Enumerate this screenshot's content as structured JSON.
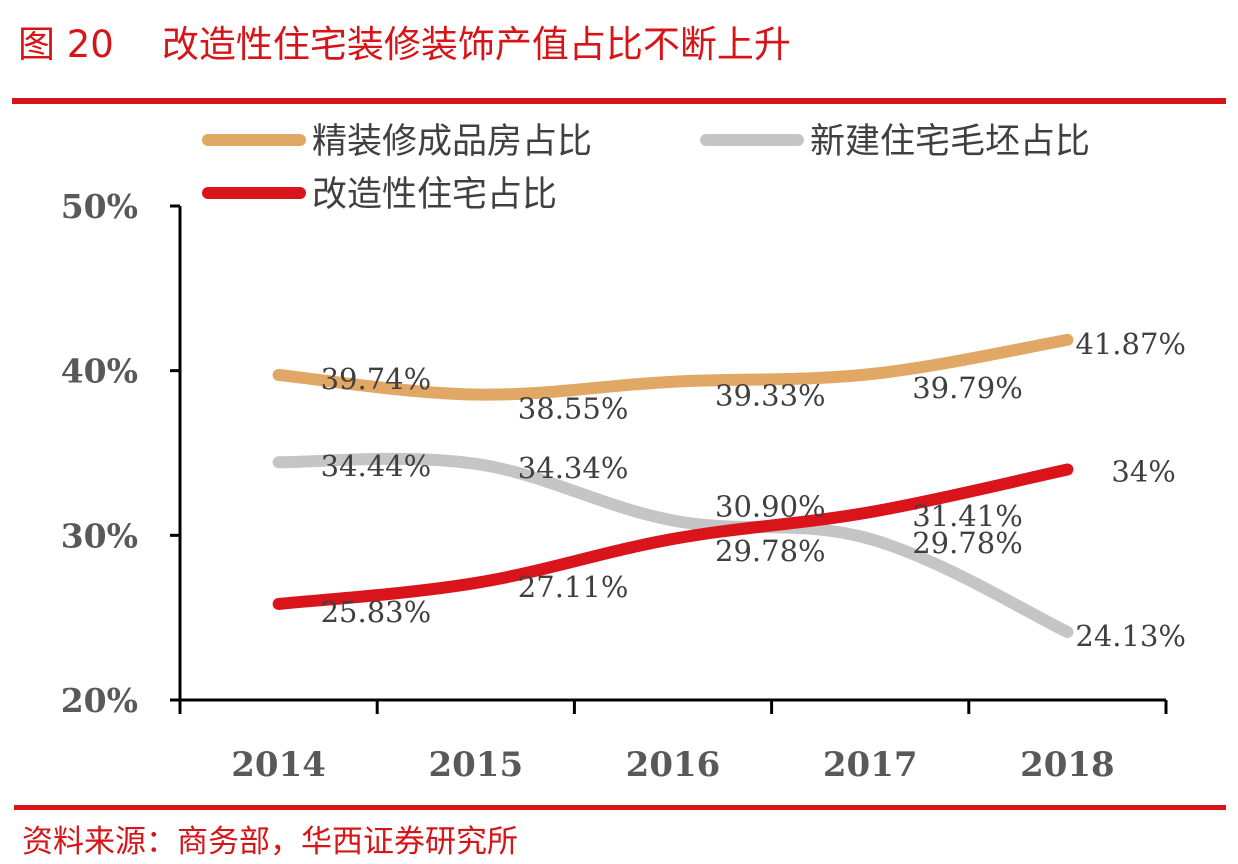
{
  "figure": {
    "number": "图 20",
    "title": "改造性住宅装修装饰产值占比不断上升",
    "source": "资料来源：商务部，华西证券研究所"
  },
  "colors": {
    "accent": "#d71518",
    "axis": "#000000",
    "text": "#404040"
  },
  "chart_data": {
    "type": "line",
    "categories": [
      "2014",
      "2015",
      "2016",
      "2017",
      "2018"
    ],
    "y_tick_labels": [
      "20%",
      "30%",
      "40%",
      "50%"
    ],
    "y_ticks": [
      20,
      30,
      40,
      50
    ],
    "ylim": [
      20,
      50
    ],
    "grid": false,
    "legend_position": "top",
    "series": [
      {
        "name": "精装修成品房占比",
        "color": "#e1a764",
        "values": [
          39.74,
          38.55,
          39.33,
          39.79,
          41.87
        ],
        "labels": [
          "39.74%",
          "38.55%",
          "39.33%",
          "39.79%",
          "41.87%"
        ]
      },
      {
        "name": "新建住宅毛坯占比",
        "color": "#c5c5c8",
        "values": [
          34.44,
          34.34,
          30.9,
          29.78,
          24.13
        ],
        "labels": [
          "34.44%",
          "34.34%",
          "30.90%",
          "29.78%",
          "24.13%"
        ]
      },
      {
        "name": "改造性住宅占比",
        "color": "#d9141b",
        "values": [
          25.83,
          27.11,
          29.78,
          31.41,
          34
        ],
        "labels": [
          "25.83%",
          "27.11%",
          "29.78%",
          "31.41%",
          "34%"
        ]
      }
    ]
  }
}
